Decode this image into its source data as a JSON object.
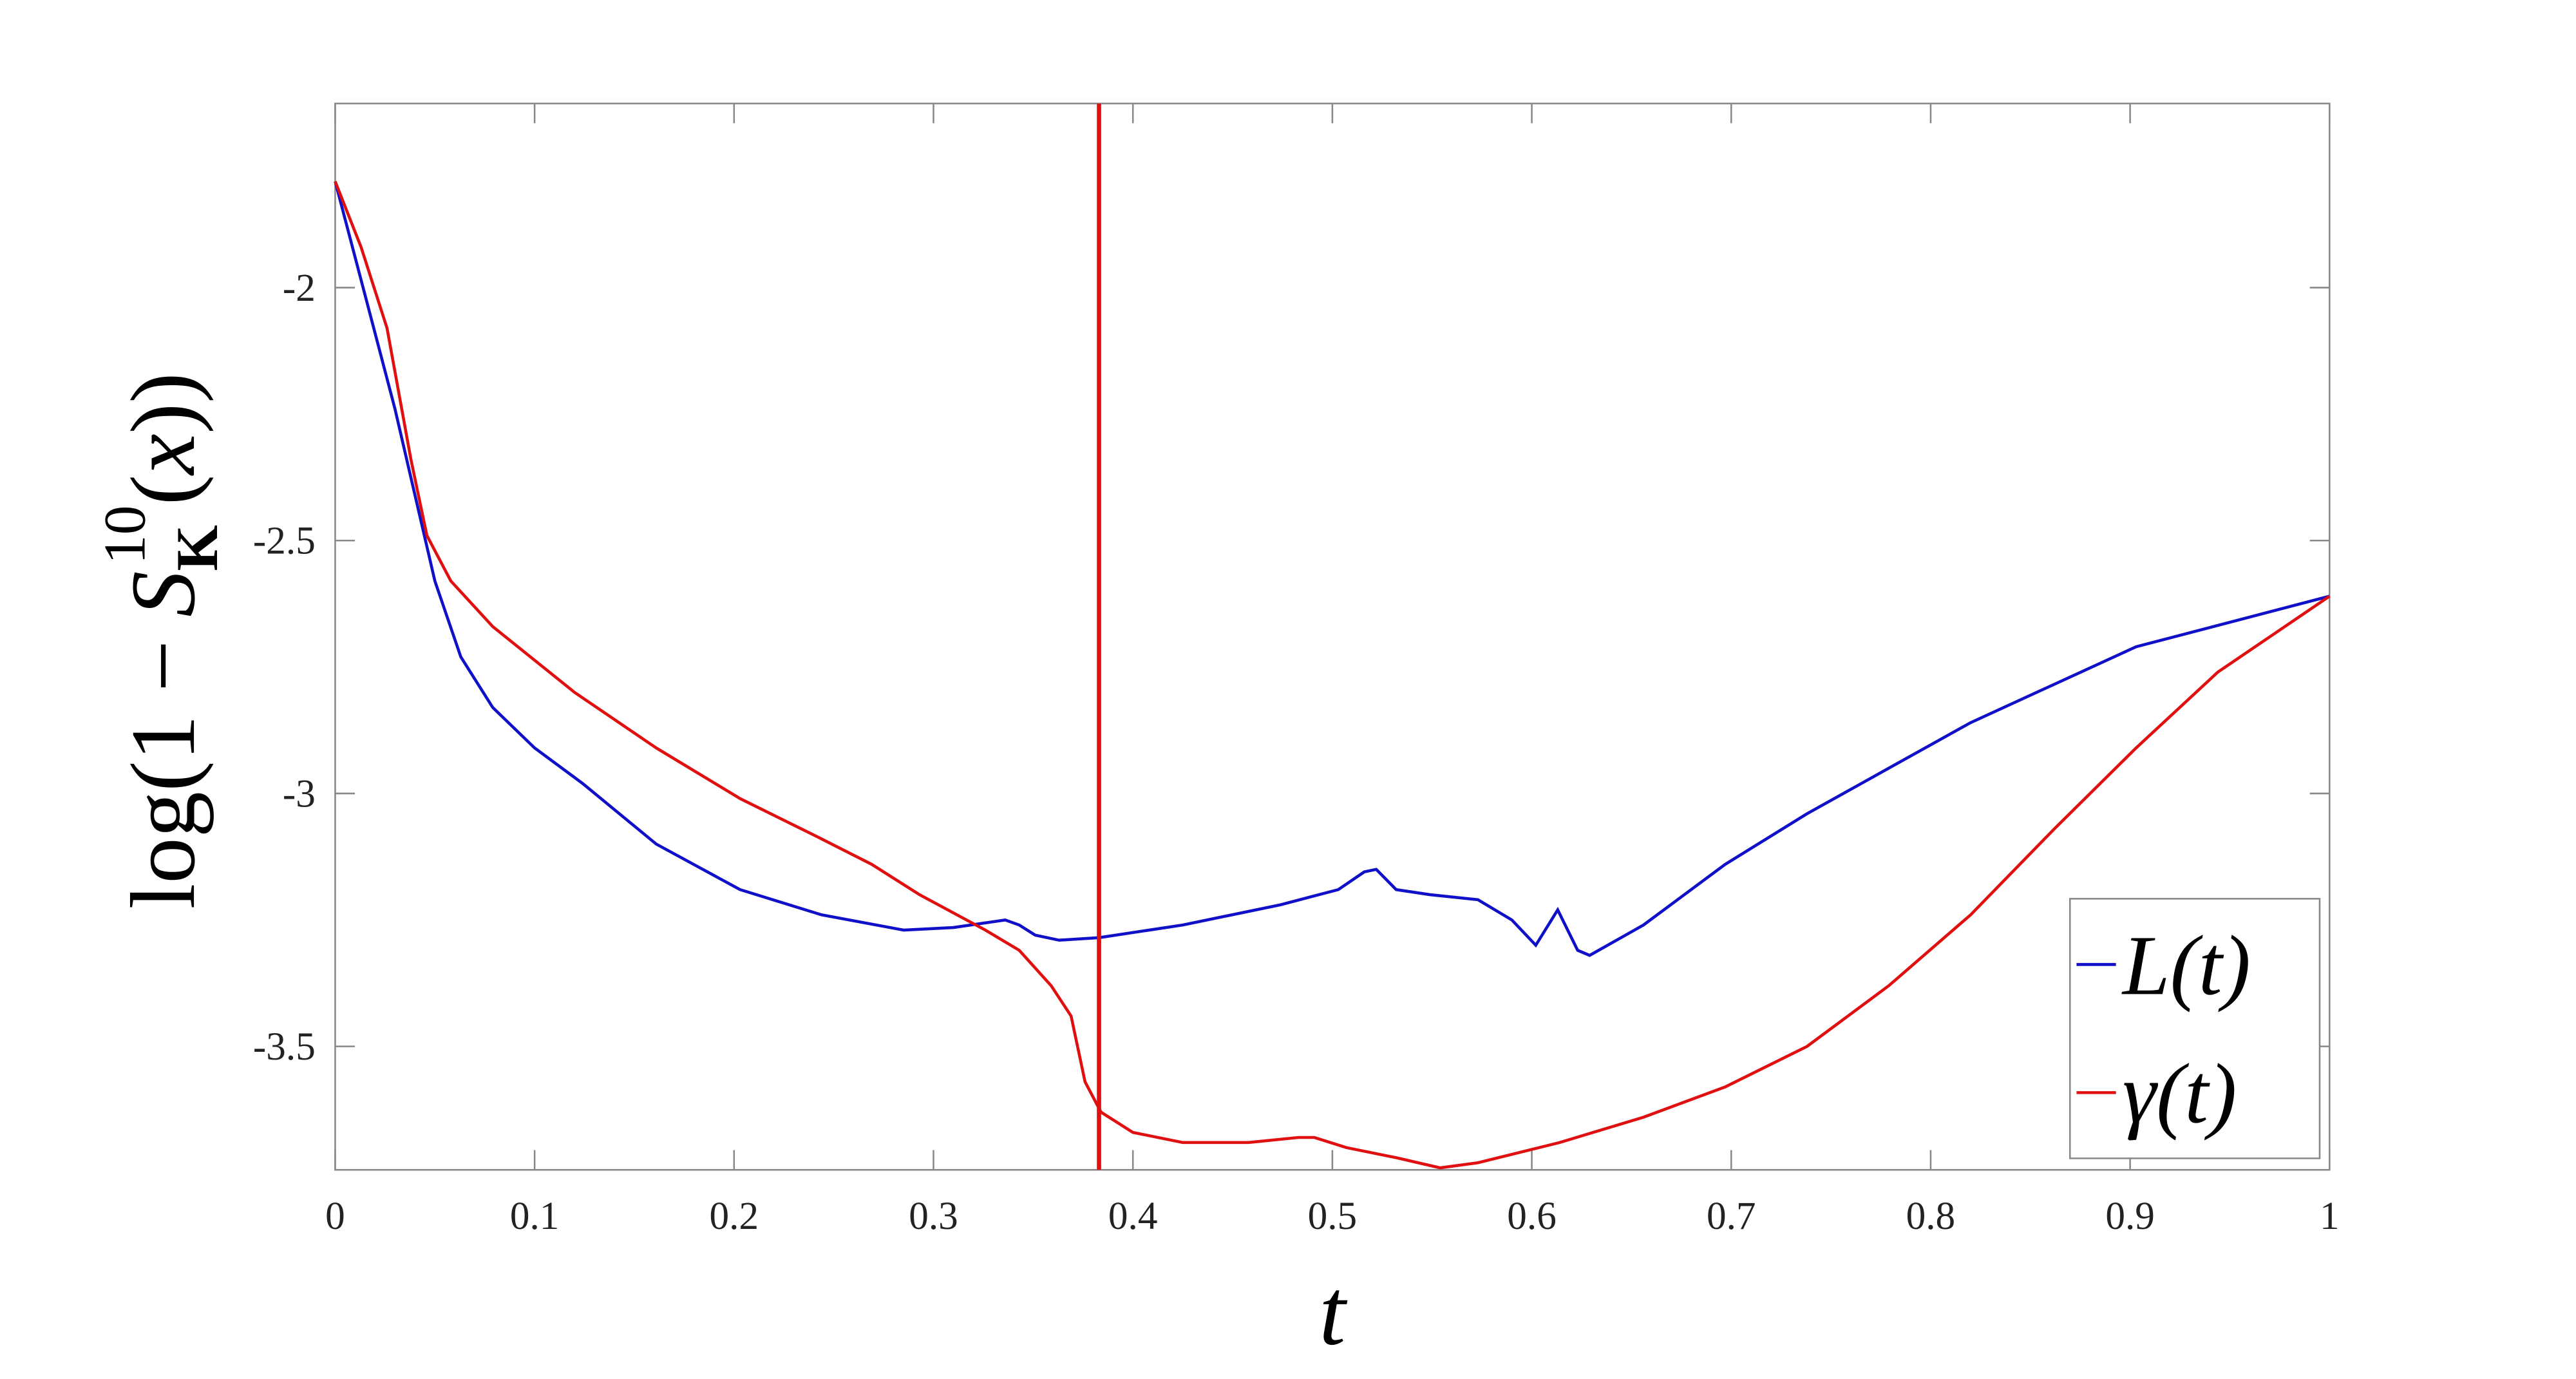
{
  "chart_data": {
    "type": "line",
    "xlabel": "t",
    "ylabel": [
      "log",
      "(1 − ",
      "S",
      "K",
      "10",
      "(",
      "x",
      "))"
    ],
    "xlim": [
      0,
      1
    ],
    "ylim": [
      -3.744,
      -1.636
    ],
    "xticks": [
      0,
      0.1,
      0.2,
      0.3,
      0.4,
      0.5,
      0.6,
      0.7,
      0.8,
      0.9,
      1
    ],
    "yticks": [
      -2,
      -2.5,
      -3,
      -3.5
    ],
    "grid": false,
    "legend": "lower right",
    "vline": {
      "x": 0.383,
      "color": "#e01010"
    },
    "series": [
      {
        "name": "L(t)",
        "color": "#1010c8",
        "x": [
          0,
          0.03,
          0.05,
          0.063,
          0.079,
          0.1,
          0.124,
          0.161,
          0.203,
          0.244,
          0.285,
          0.31,
          0.336,
          0.343,
          0.351,
          0.363,
          0.383,
          0.425,
          0.474,
          0.503,
          0.516,
          0.522,
          0.532,
          0.549,
          0.573,
          0.59,
          0.602,
          0.613,
          0.623,
          0.629,
          0.656,
          0.697,
          0.738,
          0.82,
          0.903,
          1
        ],
        "values": [
          -1.79,
          -2.24,
          -2.58,
          -2.73,
          -2.83,
          -2.91,
          -2.98,
          -3.1,
          -3.19,
          -3.24,
          -3.27,
          -3.265,
          -3.25,
          -3.26,
          -3.28,
          -3.29,
          -3.285,
          -3.26,
          -3.22,
          -3.19,
          -3.155,
          -3.15,
          -3.19,
          -3.2,
          -3.21,
          -3.25,
          -3.3,
          -3.23,
          -3.31,
          -3.32,
          -3.26,
          -3.14,
          -3.04,
          -2.86,
          -2.71,
          -2.61
        ]
      },
      {
        "name": "γ(t)",
        "color": "#e01010",
        "x": [
          0,
          0.013,
          0.026,
          0.038,
          0.046,
          0.058,
          0.079,
          0.12,
          0.161,
          0.203,
          0.244,
          0.269,
          0.293,
          0.326,
          0.343,
          0.359,
          0.369,
          0.376,
          0.384,
          0.4,
          0.425,
          0.458,
          0.483,
          0.491,
          0.507,
          0.532,
          0.554,
          0.573,
          0.614,
          0.656,
          0.697,
          0.738,
          0.779,
          0.82,
          0.862,
          0.903,
          0.944,
          1
        ],
        "values": [
          -1.79,
          -1.92,
          -2.08,
          -2.34,
          -2.49,
          -2.58,
          -2.67,
          -2.8,
          -2.91,
          -3.01,
          -3.09,
          -3.14,
          -3.2,
          -3.27,
          -3.31,
          -3.38,
          -3.44,
          -3.57,
          -3.63,
          -3.67,
          -3.69,
          -3.69,
          -3.68,
          -3.68,
          -3.7,
          -3.72,
          -3.74,
          -3.73,
          -3.69,
          -3.64,
          -3.58,
          -3.5,
          -3.38,
          -3.24,
          -3.07,
          -2.91,
          -2.76,
          -2.61
        ]
      }
    ]
  }
}
